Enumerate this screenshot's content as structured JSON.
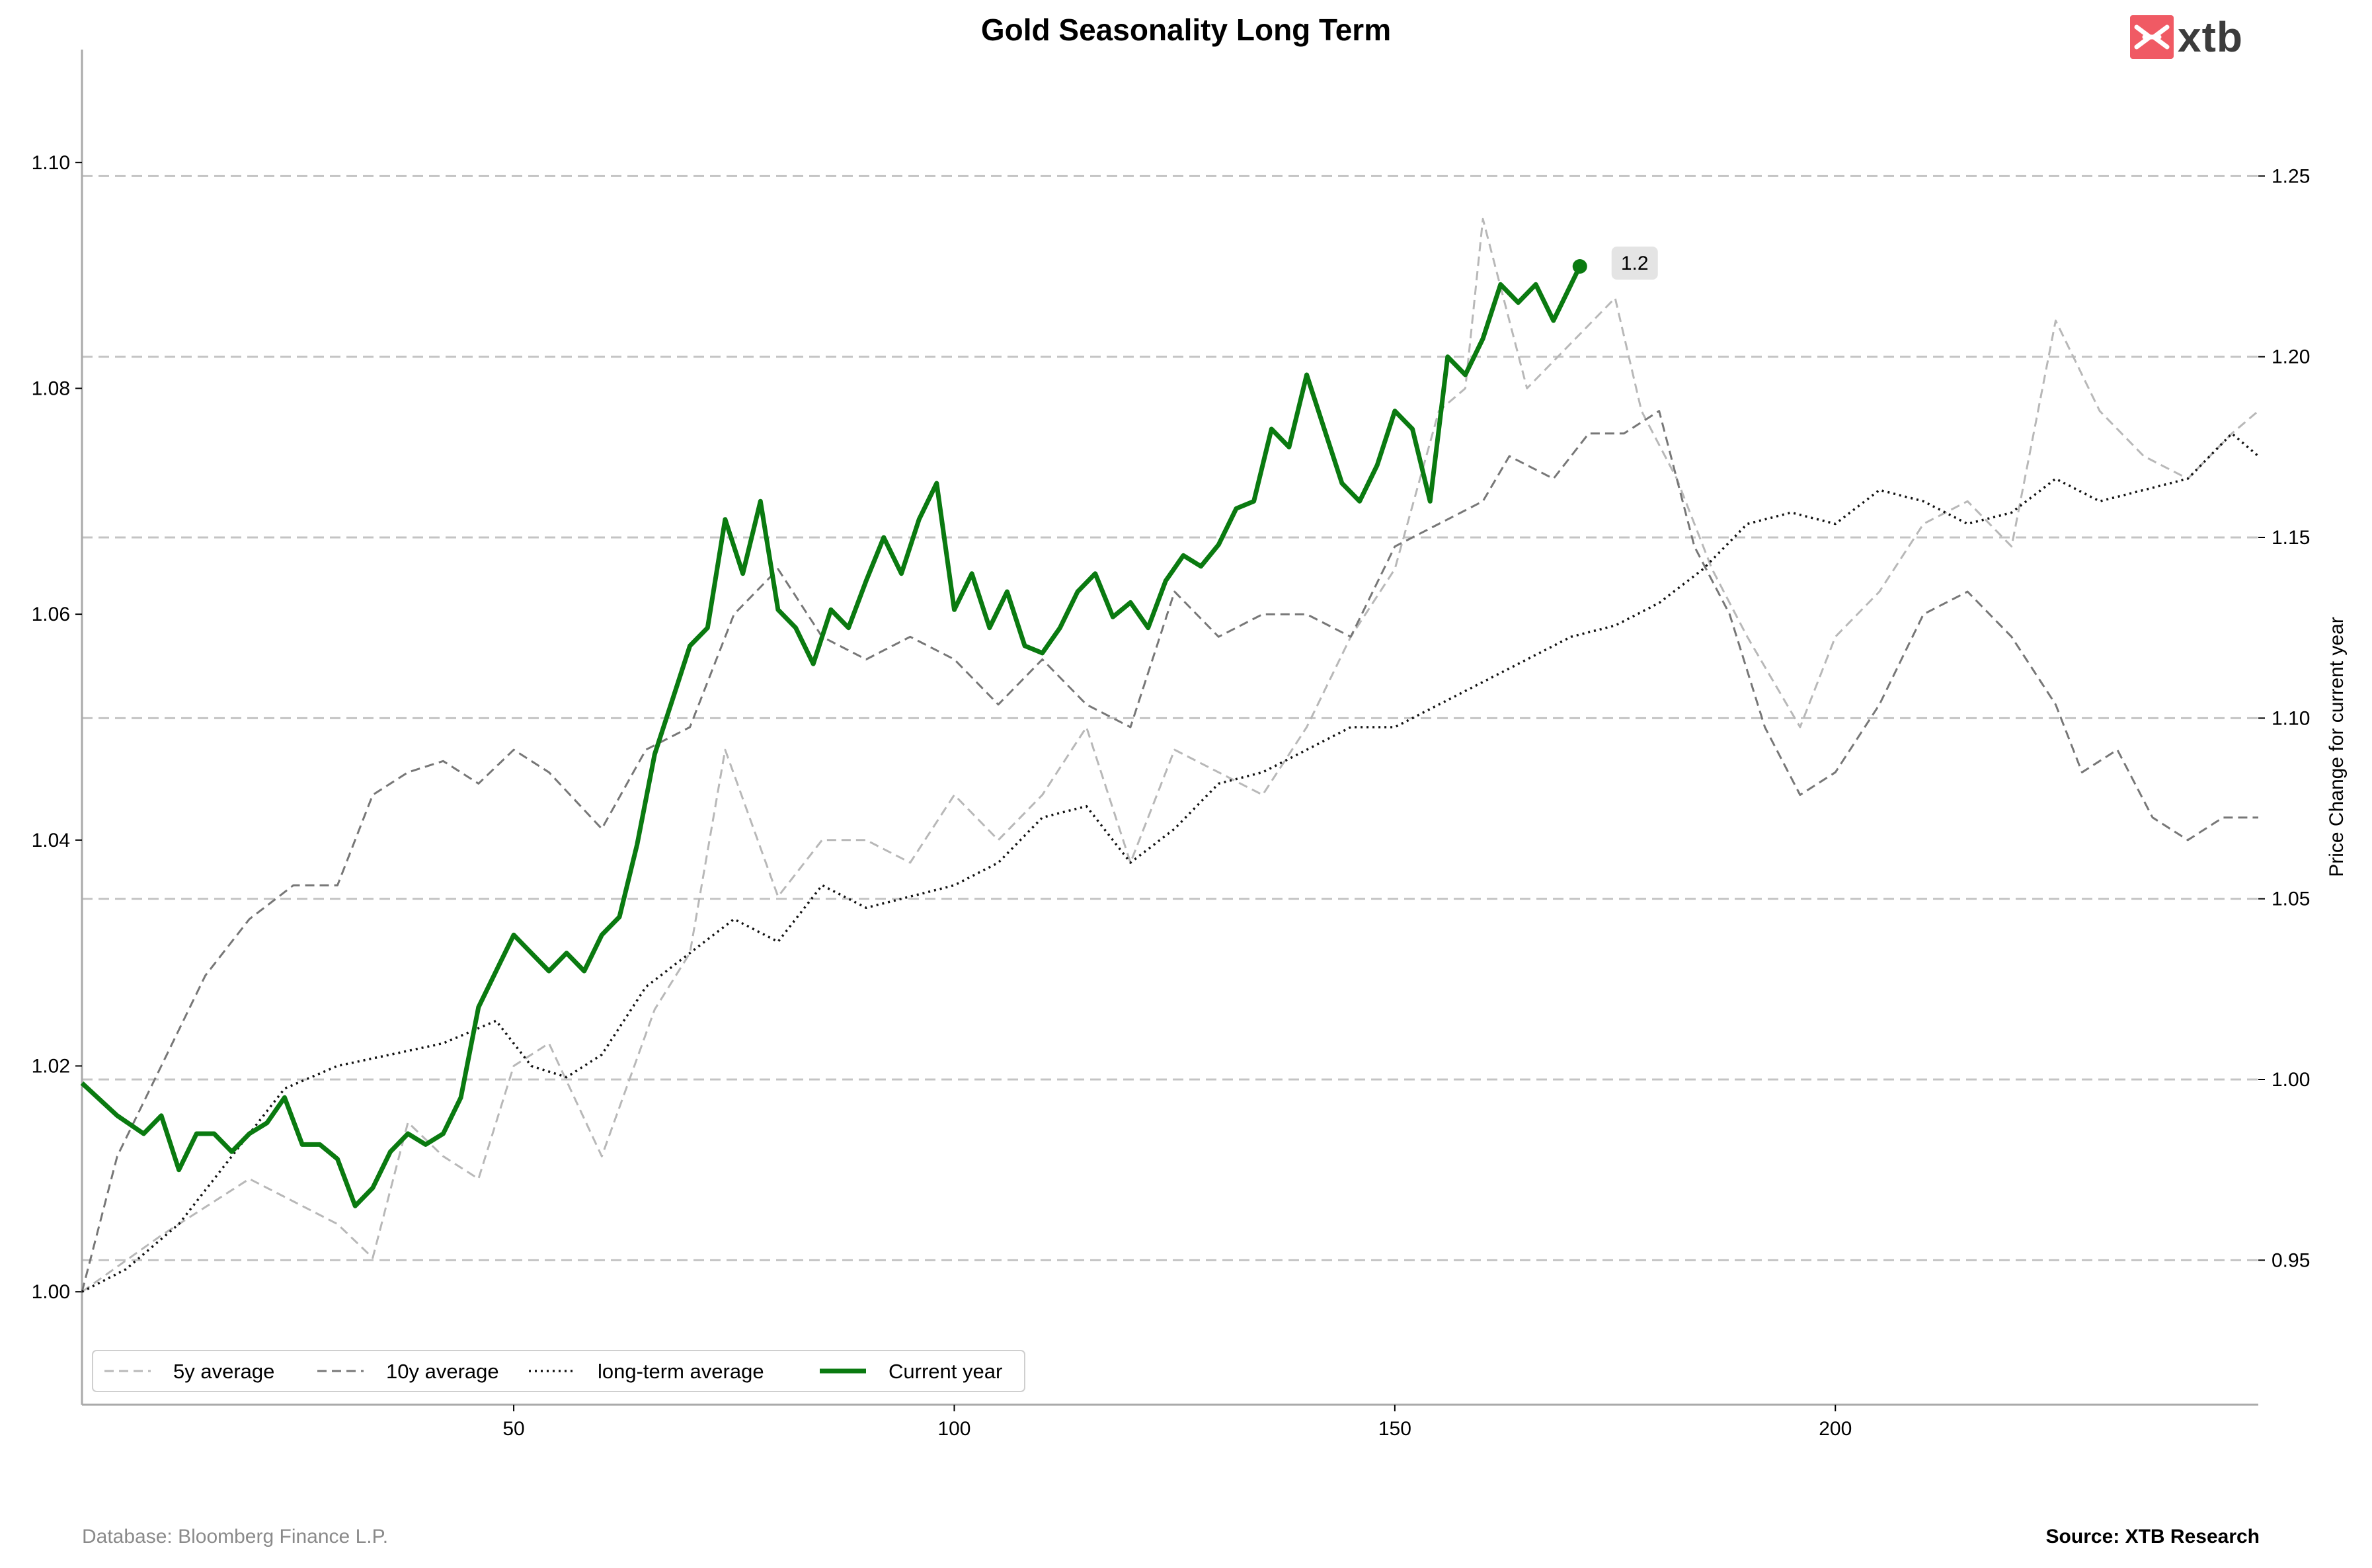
{
  "chart_data": {
    "type": "line",
    "title": "Gold Seasonality Long Term",
    "xlabel": "",
    "ylabel_left": "",
    "ylabel_right": "Price Change for current year",
    "xlim": [
      1,
      248
    ],
    "ylim_left": [
      0.99,
      1.11
    ],
    "ylim_right": [
      0.91,
      1.285
    ],
    "x_ticks": [
      "50",
      "100",
      "150",
      "200"
    ],
    "y_ticks_left": [
      "1.00",
      "1.02",
      "1.04",
      "1.06",
      "1.08",
      "1.10"
    ],
    "y_ticks_right": [
      "0.95",
      "1.00",
      "1.05",
      "1.10",
      "1.15",
      "1.20",
      "1.25"
    ],
    "grid": "horizontal dashed on right axis",
    "legend_position": "bottom-left",
    "series": [
      {
        "name": "5y average",
        "axis": "left",
        "color": "#b8b8b8",
        "style": "dashed",
        "x": [
          1,
          10,
          20,
          25,
          30,
          34,
          38,
          42,
          46,
          50,
          54,
          60,
          66,
          70,
          74,
          80,
          85,
          90,
          95,
          100,
          105,
          110,
          115,
          120,
          125,
          130,
          135,
          140,
          145,
          150,
          155,
          158,
          160,
          165,
          170,
          175,
          178,
          182,
          186,
          190,
          196,
          200,
          205,
          210,
          215,
          220,
          225,
          230,
          235,
          240,
          245,
          248
        ],
        "y": [
          1.0,
          1.005,
          1.01,
          1.008,
          1.006,
          1.003,
          1.015,
          1.012,
          1.01,
          1.02,
          1.022,
          1.012,
          1.025,
          1.03,
          1.048,
          1.035,
          1.04,
          1.04,
          1.038,
          1.044,
          1.04,
          1.044,
          1.05,
          1.038,
          1.048,
          1.046,
          1.044,
          1.05,
          1.058,
          1.064,
          1.078,
          1.08,
          1.095,
          1.08,
          1.084,
          1.088,
          1.078,
          1.072,
          1.064,
          1.058,
          1.05,
          1.058,
          1.062,
          1.068,
          1.07,
          1.066,
          1.086,
          1.078,
          1.074,
          1.072,
          1.076,
          1.078
        ]
      },
      {
        "name": "10y average",
        "axis": "left",
        "color": "#777777",
        "style": "dashed",
        "x": [
          1,
          5,
          10,
          15,
          20,
          25,
          30,
          34,
          38,
          42,
          46,
          50,
          54,
          60,
          65,
          70,
          75,
          80,
          85,
          90,
          95,
          100,
          105,
          110,
          115,
          120,
          125,
          130,
          135,
          140,
          145,
          150,
          155,
          160,
          163,
          168,
          172,
          176,
          180,
          184,
          188,
          192,
          196,
          200,
          205,
          210,
          215,
          220,
          225,
          228,
          232,
          236,
          240,
          244,
          248
        ],
        "y": [
          1.0,
          1.012,
          1.02,
          1.028,
          1.033,
          1.036,
          1.036,
          1.044,
          1.046,
          1.047,
          1.045,
          1.048,
          1.046,
          1.041,
          1.048,
          1.05,
          1.06,
          1.064,
          1.058,
          1.056,
          1.058,
          1.056,
          1.052,
          1.056,
          1.052,
          1.05,
          1.062,
          1.058,
          1.06,
          1.06,
          1.058,
          1.066,
          1.068,
          1.07,
          1.074,
          1.072,
          1.076,
          1.076,
          1.078,
          1.066,
          1.06,
          1.05,
          1.044,
          1.046,
          1.052,
          1.06,
          1.062,
          1.058,
          1.052,
          1.046,
          1.048,
          1.042,
          1.04,
          1.042,
          1.042
        ]
      },
      {
        "name": "long-term average",
        "axis": "left",
        "color": "#111111",
        "style": "dotted",
        "x": [
          1,
          6,
          12,
          18,
          24,
          30,
          36,
          42,
          48,
          52,
          56,
          60,
          65,
          70,
          75,
          80,
          85,
          90,
          95,
          100,
          105,
          110,
          115,
          120,
          125,
          130,
          135,
          140,
          145,
          150,
          155,
          160,
          165,
          170,
          175,
          180,
          185,
          190,
          195,
          200,
          205,
          210,
          215,
          220,
          225,
          230,
          235,
          240,
          245,
          248
        ],
        "y": [
          1.0,
          1.002,
          1.006,
          1.012,
          1.018,
          1.02,
          1.021,
          1.022,
          1.024,
          1.02,
          1.019,
          1.021,
          1.027,
          1.03,
          1.033,
          1.031,
          1.036,
          1.034,
          1.035,
          1.036,
          1.038,
          1.042,
          1.043,
          1.038,
          1.041,
          1.045,
          1.046,
          1.048,
          1.05,
          1.05,
          1.052,
          1.054,
          1.056,
          1.058,
          1.059,
          1.061,
          1.064,
          1.068,
          1.069,
          1.068,
          1.071,
          1.07,
          1.068,
          1.069,
          1.072,
          1.07,
          1.071,
          1.072,
          1.076,
          1.074
        ]
      },
      {
        "name": "Current year",
        "axis": "right",
        "color": "#0a7a10",
        "style": "solid",
        "x": [
          1,
          5,
          8,
          10,
          12,
          14,
          16,
          18,
          20,
          22,
          24,
          26,
          28,
          30,
          32,
          34,
          36,
          38,
          40,
          42,
          44,
          46,
          48,
          50,
          52,
          54,
          56,
          58,
          60,
          62,
          64,
          66,
          68,
          70,
          72,
          74,
          76,
          78,
          80,
          82,
          84,
          86,
          88,
          90,
          92,
          94,
          96,
          98,
          100,
          102,
          104,
          106,
          108,
          110,
          112,
          114,
          116,
          118,
          120,
          122,
          124,
          126,
          128,
          130,
          132,
          134,
          136,
          138,
          140,
          142,
          144,
          146,
          148,
          150,
          152,
          154,
          156,
          158,
          160,
          162,
          164,
          166,
          168,
          170,
          171
        ],
        "y": [
          0.999,
          0.99,
          0.985,
          0.99,
          0.975,
          0.985,
          0.985,
          0.98,
          0.985,
          0.988,
          0.995,
          0.982,
          0.982,
          0.978,
          0.965,
          0.97,
          0.98,
          0.985,
          0.982,
          0.985,
          0.995,
          1.02,
          1.03,
          1.04,
          1.035,
          1.03,
          1.035,
          1.03,
          1.04,
          1.045,
          1.065,
          1.09,
          1.105,
          1.12,
          1.125,
          1.155,
          1.14,
          1.16,
          1.13,
          1.125,
          1.115,
          1.13,
          1.125,
          1.138,
          1.15,
          1.14,
          1.155,
          1.165,
          1.13,
          1.14,
          1.125,
          1.135,
          1.12,
          1.118,
          1.125,
          1.135,
          1.14,
          1.128,
          1.132,
          1.125,
          1.138,
          1.145,
          1.142,
          1.148,
          1.158,
          1.16,
          1.18,
          1.175,
          1.195,
          1.18,
          1.165,
          1.16,
          1.17,
          1.185,
          1.18,
          1.16,
          1.2,
          1.195,
          1.205,
          1.22,
          1.215,
          1.22,
          1.21,
          1.22,
          1.225
        ]
      }
    ],
    "annotations": [
      {
        "x": 171,
        "y": 1.225,
        "axis": "right",
        "text": "1.2"
      }
    ],
    "source_left": "Database: Bloomberg Finance L.P.",
    "source_right": "Source: XTB Research",
    "logo_text": "xtb"
  }
}
